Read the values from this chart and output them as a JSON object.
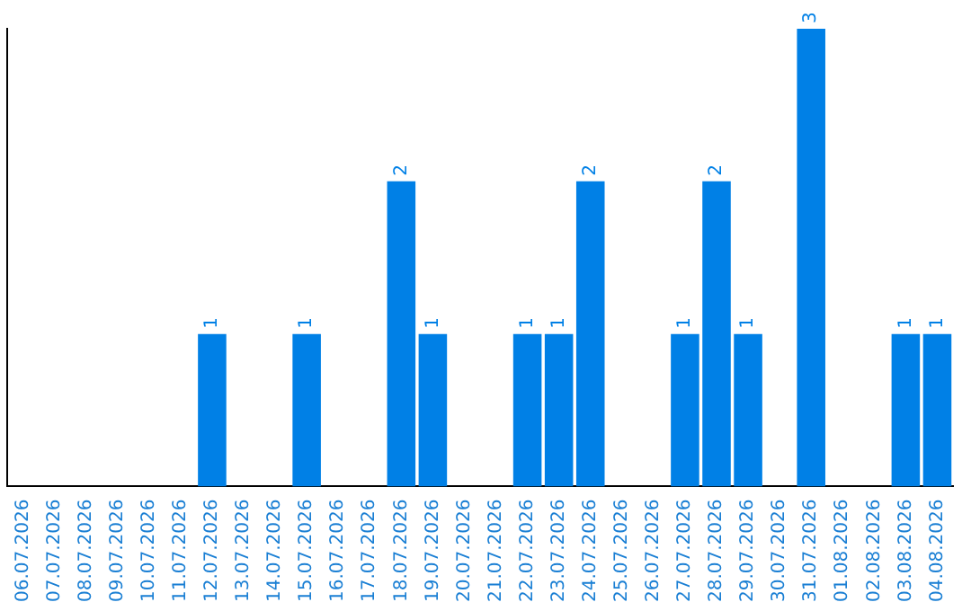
{
  "chart_data": {
    "type": "bar",
    "categories": [
      "06.07.2026",
      "07.07.2026",
      "08.07.2026",
      "09.07.2026",
      "10.07.2026",
      "11.07.2026",
      "12.07.2026",
      "13.07.2026",
      "14.07.2026",
      "15.07.2026",
      "16.07.2026",
      "17.07.2026",
      "18.07.2026",
      "19.07.2026",
      "20.07.2026",
      "21.07.2026",
      "22.07.2026",
      "23.07.2026",
      "24.07.2026",
      "25.07.2026",
      "26.07.2026",
      "27.07.2026",
      "28.07.2026",
      "29.07.2026",
      "30.07.2026",
      "31.07.2026",
      "01.08.2026",
      "02.08.2026",
      "03.08.2026",
      "04.08.2026"
    ],
    "values": [
      0,
      0,
      0,
      0,
      0,
      0,
      1,
      0,
      0,
      1,
      0,
      0,
      2,
      1,
      0,
      0,
      1,
      1,
      2,
      0,
      0,
      1,
      2,
      1,
      0,
      3,
      0,
      0,
      1,
      1
    ],
    "value_labels": [
      null,
      null,
      null,
      null,
      null,
      null,
      "1",
      null,
      null,
      "1",
      null,
      null,
      "2",
      "1",
      null,
      null,
      "1",
      "1",
      "2",
      null,
      null,
      "1",
      "2",
      "1",
      null,
      "3",
      null,
      null,
      "1",
      "1"
    ],
    "color": "#0080e6",
    "grid": false,
    "legend": false,
    "tick_labels": "x"
  }
}
